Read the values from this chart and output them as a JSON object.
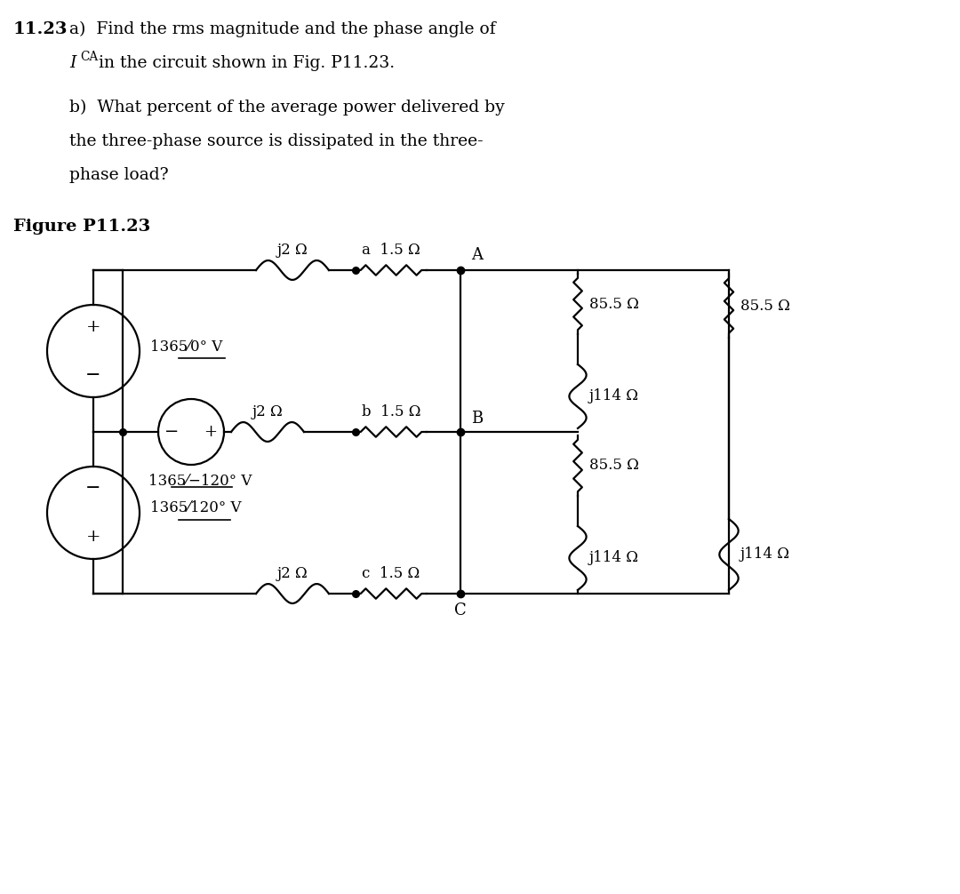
{
  "bg_color": "#ffffff",
  "text_color": "#000000",
  "problem_number": "11.23",
  "part_a_line1": "a)  Find the rms magnitude and the phase angle of",
  "part_a_line2": " in the circuit shown in Fig. P11.23.",
  "part_b_line1": "b)  What percent of the average power delivered by",
  "part_b_line2": "the three-phase source is dissipated in the three-",
  "part_b_line3": "phase load?",
  "figure_label": "Figure P11.23",
  "src_a_label": "1365/0° V",
  "src_b_label": "1365/−120° V",
  "src_c_label": "1365/120° V",
  "ind_label": "j2 Ω",
  "res_a_label": "a  1.5 Ω",
  "res_b_label": "b  1.5 Ω",
  "res_c_label": "c  1.5 Ω",
  "node_A": "A",
  "node_B": "B",
  "node_C": "C",
  "load_res": "85.5 Ω",
  "load_ind_AB": "j114 Ω",
  "load_ind_BC": "j114 Ω",
  "load_right_res": "85.5 Ω",
  "load_right_ind": "j114 Ω"
}
